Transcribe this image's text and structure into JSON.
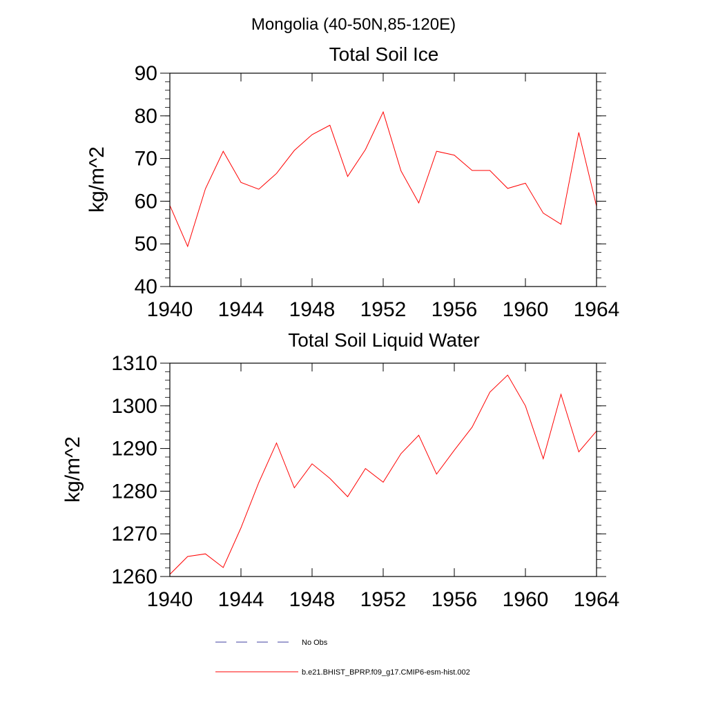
{
  "suptitle": "Mongolia (40-50N,85-120E)",
  "legend": {
    "items": [
      {
        "label": "No Obs",
        "color": "#3f3f9f",
        "dash": true
      },
      {
        "label": "b.e21.BHIST_BPRP.f09_g17.CMIP6-esm-hist.002",
        "color": "#ff0000",
        "dash": false
      }
    ]
  },
  "chart_data": [
    {
      "type": "line",
      "title": "Total Soil Ice",
      "xlabel": "",
      "ylabel": "kg/m^2",
      "xlim": [
        1940,
        1964
      ],
      "ylim": [
        40,
        90
      ],
      "xticks": [
        1940,
        1944,
        1948,
        1952,
        1956,
        1960,
        1964
      ],
      "xtick_labels": [
        "1940",
        "1944",
        "1948",
        "1952",
        "1956",
        "1960",
        "1964"
      ],
      "yticks": [
        40,
        50,
        60,
        70,
        80,
        90
      ],
      "ytick_labels": [
        "40",
        "50",
        "60",
        "70",
        "80",
        "90"
      ],
      "series": [
        {
          "name": "b.e21.BHIST_BPRP.f09_g17.CMIP6-esm-hist.002",
          "color": "#ff0000",
          "x": [
            1940,
            1941,
            1942,
            1943,
            1944,
            1945,
            1946,
            1947,
            1948,
            1949,
            1950,
            1951,
            1952,
            1953,
            1954,
            1955,
            1956,
            1957,
            1958,
            1959,
            1960,
            1961,
            1962,
            1963,
            1964
          ],
          "values": [
            59.0,
            49.4,
            62.9,
            71.7,
            64.4,
            62.8,
            66.5,
            71.9,
            75.6,
            77.8,
            65.8,
            72.1,
            80.9,
            67.1,
            59.6,
            71.7,
            70.8,
            67.2,
            67.2,
            63.0,
            64.2,
            57.2,
            54.6,
            76.1,
            58.8
          ]
        }
      ]
    },
    {
      "type": "line",
      "title": "Total Soil Liquid Water",
      "xlabel": "",
      "ylabel": "kg/m^2",
      "xlim": [
        1940,
        1964
      ],
      "ylim": [
        1260,
        1310
      ],
      "xticks": [
        1940,
        1944,
        1948,
        1952,
        1956,
        1960,
        1964
      ],
      "xtick_labels": [
        "1940",
        "1944",
        "1948",
        "1952",
        "1956",
        "1960",
        "1964"
      ],
      "yticks": [
        1260,
        1270,
        1280,
        1290,
        1300,
        1310
      ],
      "ytick_labels": [
        "1260",
        "1270",
        "1280",
        "1290",
        "1300",
        "1310"
      ],
      "series": [
        {
          "name": "b.e21.BHIST_BPRP.f09_g17.CMIP6-esm-hist.002",
          "color": "#ff0000",
          "x": [
            1940,
            1941,
            1942,
            1943,
            1944,
            1945,
            1946,
            1947,
            1948,
            1949,
            1950,
            1951,
            1952,
            1953,
            1954,
            1955,
            1956,
            1957,
            1958,
            1959,
            1960,
            1961,
            1962,
            1963,
            1964
          ],
          "values": [
            1260.5,
            1264.7,
            1265.3,
            1262.1,
            1271.4,
            1282.0,
            1291.3,
            1280.8,
            1286.4,
            1283.0,
            1278.7,
            1285.3,
            1282.1,
            1288.8,
            1293.1,
            1284.0,
            1289.6,
            1295.0,
            1303.2,
            1307.2,
            1300.0,
            1287.6,
            1302.7,
            1289.2,
            1294.1
          ]
        }
      ]
    }
  ]
}
